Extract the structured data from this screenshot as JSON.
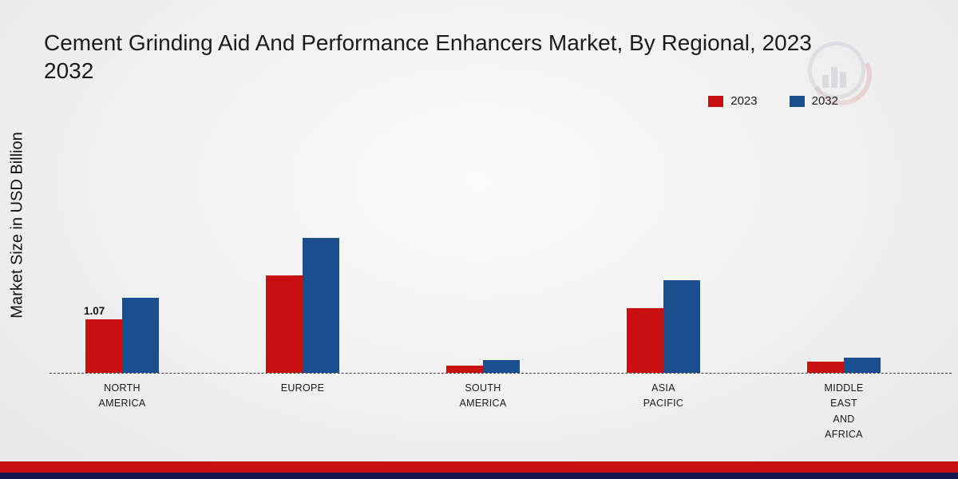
{
  "title": {
    "line1": "Cement Grinding Aid And Performance Enhancers Market, By Regional, 2023",
    "line2": "2032"
  },
  "y_axis_label": "Market Size in USD Billion",
  "legend": {
    "position": "top-right",
    "items": [
      {
        "label": "2023",
        "color": "#c90f12"
      },
      {
        "label": "2032",
        "color": "#1b4e8e"
      }
    ]
  },
  "chart_data": {
    "type": "bar",
    "title": "Cement Grinding Aid And Performance Enhancers Market, By Regional, 2023 2032",
    "xlabel": "",
    "ylabel": "Market Size in USD Billion",
    "ylim": [
      0,
      3
    ],
    "grid": false,
    "baseline_style": "dashed",
    "legend_position": "top-right",
    "categories": [
      "NORTH AMERICA",
      "EUROPE",
      "SOUTH AMERICA",
      "ASIA PACIFIC",
      "MIDDLE EAST AND AFRICA"
    ],
    "series": [
      {
        "name": "2023",
        "color": "#c90f12",
        "values": [
          1.07,
          1.95,
          0.15,
          1.3,
          0.22
        ]
      },
      {
        "name": "2032",
        "color": "#1b4e8e",
        "values": [
          1.5,
          2.7,
          0.25,
          1.85,
          0.3
        ]
      }
    ],
    "annotations": [
      {
        "category": "NORTH AMERICA",
        "series": "2023",
        "text": "1.07"
      }
    ]
  },
  "colors": {
    "footer_red": "#c90f12",
    "footer_navy": "#16164e"
  }
}
